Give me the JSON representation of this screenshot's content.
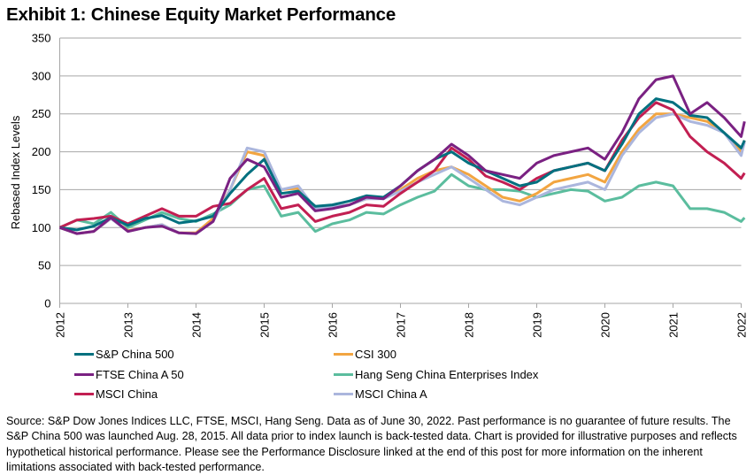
{
  "chart_data": {
    "type": "line",
    "title": "Exhibit 1: Chinese Equity Market Performance",
    "xlabel": "",
    "ylabel": "Rebased Index Levels",
    "ylim": [
      0,
      350
    ],
    "xlim": [
      2012,
      2022
    ],
    "yticks": [
      0,
      50,
      100,
      150,
      200,
      250,
      300,
      350
    ],
    "xticks": [
      "2012",
      "2013",
      "2014",
      "2015",
      "2016",
      "2017",
      "2018",
      "2019",
      "2020",
      "2021",
      "2022"
    ],
    "grid": "horizontal",
    "legend_position": "bottom",
    "x": [
      2012.0,
      2012.25,
      2012.5,
      2012.75,
      2013.0,
      2013.25,
      2013.5,
      2013.75,
      2014.0,
      2014.25,
      2014.5,
      2014.75,
      2015.0,
      2015.25,
      2015.5,
      2015.75,
      2016.0,
      2016.25,
      2016.5,
      2016.75,
      2017.0,
      2017.25,
      2017.5,
      2017.75,
      2018.0,
      2018.25,
      2018.5,
      2018.75,
      2019.0,
      2019.25,
      2019.5,
      2019.75,
      2020.0,
      2020.25,
      2020.5,
      2020.75,
      2021.0,
      2021.25,
      2021.5,
      2021.75,
      2022.0,
      2022.05
    ],
    "series": [
      {
        "name": "S&P China 500",
        "color": "#00707F",
        "values": [
          100,
          97,
          102,
          113,
          103,
          112,
          116,
          106,
          109,
          115,
          145,
          170,
          190,
          145,
          148,
          128,
          130,
          135,
          142,
          140,
          155,
          175,
          190,
          200,
          185,
          175,
          165,
          155,
          160,
          175,
          180,
          185,
          175,
          210,
          250,
          270,
          265,
          248,
          245,
          225,
          205,
          215
        ]
      },
      {
        "name": "CSI 300",
        "color": "#F2A541",
        "values": [
          100,
          92,
          95,
          112,
          96,
          100,
          104,
          93,
          93,
          112,
          150,
          200,
          195,
          150,
          152,
          125,
          128,
          130,
          138,
          140,
          150,
          165,
          175,
          180,
          170,
          155,
          140,
          135,
          145,
          160,
          165,
          170,
          160,
          200,
          230,
          250,
          250,
          245,
          240,
          225,
          200,
          215
        ]
      },
      {
        "name": "FTSE China A 50",
        "color": "#7A2182",
        "values": [
          100,
          92,
          95,
          113,
          95,
          100,
          102,
          93,
          92,
          108,
          165,
          190,
          180,
          140,
          145,
          122,
          125,
          130,
          140,
          138,
          155,
          175,
          190,
          210,
          195,
          175,
          170,
          165,
          185,
          195,
          200,
          205,
          190,
          225,
          270,
          295,
          300,
          250,
          265,
          245,
          220,
          240
        ]
      },
      {
        "name": "Hang Seng China Enterprises Index",
        "color": "#5BBD9E",
        "values": [
          100,
          110,
          105,
          120,
          100,
          110,
          120,
          112,
          108,
          118,
          130,
          150,
          155,
          115,
          120,
          95,
          105,
          110,
          120,
          118,
          130,
          140,
          148,
          170,
          155,
          150,
          150,
          148,
          140,
          145,
          150,
          148,
          135,
          140,
          155,
          160,
          155,
          125,
          125,
          120,
          108,
          113
        ]
      },
      {
        "name": "MSCI China",
        "color": "#C21F52",
        "values": [
          100,
          110,
          112,
          115,
          105,
          115,
          125,
          115,
          115,
          128,
          132,
          150,
          165,
          125,
          130,
          108,
          115,
          120,
          130,
          128,
          145,
          160,
          175,
          205,
          190,
          168,
          160,
          150,
          165,
          175,
          180,
          185,
          175,
          215,
          245,
          265,
          255,
          220,
          200,
          185,
          165,
          172
        ]
      },
      {
        "name": "MSCI China A",
        "color": "#ABB6DD",
        "values": [
          100,
          92,
          95,
          112,
          95,
          100,
          104,
          93,
          92,
          108,
          150,
          205,
          200,
          150,
          155,
          125,
          128,
          130,
          138,
          138,
          148,
          160,
          170,
          180,
          165,
          150,
          135,
          130,
          140,
          150,
          155,
          160,
          150,
          195,
          225,
          245,
          250,
          240,
          235,
          225,
          195,
          213
        ]
      }
    ]
  },
  "footnote": "Source: S&P Dow Jones Indices LLC, FTSE, MSCI, Hang Seng. Data as of June 30, 2022. Past performance is no guarantee of future results. The S&P China 500 was launched Aug. 28, 2015. All data prior to index launch is back-tested data. Chart is provided for illustrative purposes and reflects hypothetical historical performance. Please see the Performance Disclosure linked at the end of this post for more information on the inherent limitations associated with back-tested performance."
}
